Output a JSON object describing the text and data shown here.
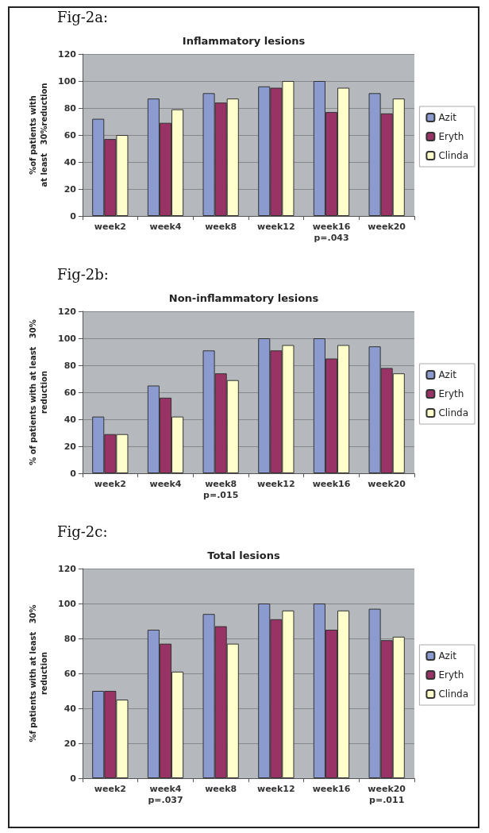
{
  "chart_data": [
    {
      "type": "bar",
      "title": "Inflammatory lesions",
      "ylabel": "%of patients with\nat least   30%reduction",
      "annotations": [
        "Fig-2a:",
        "p=.043"
      ],
      "categories": [
        "week2",
        "week4",
        "week8",
        "week12",
        "week16",
        "week20"
      ],
      "series": [
        {
          "name": "Azit",
          "color": "#8b9bd0",
          "values": [
            72,
            87,
            91,
            96,
            100,
            91
          ]
        },
        {
          "name": "Eryth",
          "color": "#993366",
          "values": [
            57,
            69,
            84,
            95,
            77,
            76
          ]
        },
        {
          "name": "Clinda",
          "color": "#ffffcc",
          "values": [
            60,
            79,
            87,
            100,
            95,
            87
          ]
        }
      ],
      "ylim": [
        0,
        120
      ],
      "yticks": [
        0,
        20,
        40,
        60,
        80,
        100,
        120
      ],
      "grid": "y",
      "legend": "right"
    },
    {
      "type": "bar",
      "title": "Non-inflammatory lesions",
      "ylabel": "% of patients with at least   30%\nreduction",
      "annotations": [
        "Fig-2b:",
        "p=.015"
      ],
      "categories": [
        "week2",
        "week4",
        "week8",
        "week12",
        "week16",
        "week20"
      ],
      "series": [
        {
          "name": "Azit",
          "color": "#8b9bd0",
          "values": [
            42,
            65,
            91,
            100,
            100,
            94
          ]
        },
        {
          "name": "Eryth",
          "color": "#993366",
          "values": [
            29,
            56,
            74,
            91,
            85,
            78
          ]
        },
        {
          "name": "Clinda",
          "color": "#ffffcc",
          "values": [
            29,
            42,
            69,
            95,
            95,
            74
          ]
        }
      ],
      "ylim": [
        0,
        120
      ],
      "yticks": [
        0,
        20,
        40,
        60,
        80,
        100,
        120
      ],
      "grid": "y",
      "legend": "right"
    },
    {
      "type": "bar",
      "title": "Total lesions",
      "ylabel": "%f patients with at least   30%\nreduction",
      "annotations": [
        "Fig-2c:",
        "p=.037",
        "p=.011"
      ],
      "categories": [
        "week2",
        "week4",
        "week8",
        "week12",
        "week16",
        "week20"
      ],
      "series": [
        {
          "name": "Azit",
          "color": "#8b9bd0",
          "values": [
            50,
            85,
            94,
            100,
            100,
            97
          ]
        },
        {
          "name": "Eryth",
          "color": "#993366",
          "values": [
            50,
            77,
            87,
            91,
            85,
            79
          ]
        },
        {
          "name": "Clinda",
          "color": "#ffffcc",
          "values": [
            45,
            61,
            77,
            96,
            96,
            81
          ]
        }
      ],
      "ylim": [
        0,
        120
      ],
      "yticks": [
        0,
        20,
        40,
        60,
        80,
        100,
        120
      ],
      "grid": "y",
      "legend": "right"
    }
  ]
}
